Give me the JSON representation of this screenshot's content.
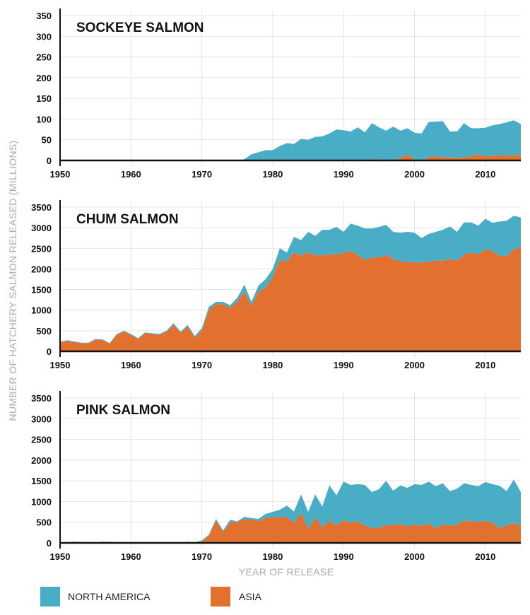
{
  "colors": {
    "north_america": "#4aadc6",
    "asia": "#e2702e",
    "grid": "#e4e4e4",
    "axis": "#111111"
  },
  "ylabel": "NUMBER OF HATCHERY SALMON RELEASED (MILLIONS)",
  "xlabel": "YEAR OF RELEASE",
  "legend": [
    {
      "name": "NORTH AMERICA",
      "color": "#4aadc6"
    },
    {
      "name": "ASIA",
      "color": "#e2702e"
    }
  ],
  "chart_data": [
    {
      "type": "area",
      "stacked": true,
      "title": "SOCKEYE SALMON",
      "x_start": 1950,
      "x_end": 2015,
      "xticks": [
        1950,
        1960,
        1970,
        1980,
        1990,
        2000,
        2010
      ],
      "yticks": [
        0,
        50,
        100,
        150,
        200,
        250,
        300,
        350
      ],
      "ylim": [
        0,
        350
      ],
      "grid": true,
      "series": [
        {
          "name": "ASIA",
          "values": [
            0,
            0,
            0,
            0,
            0,
            0,
            0,
            0,
            0,
            0,
            0,
            0,
            0,
            0,
            0,
            0,
            0,
            0,
            0,
            0,
            0,
            0,
            0,
            0,
            0,
            0,
            0,
            0,
            0,
            0,
            0,
            0,
            0,
            0,
            0,
            0,
            0,
            0,
            0,
            0,
            0,
            0,
            0,
            0,
            3,
            3,
            0,
            2,
            5,
            15,
            2,
            0,
            8,
            10,
            8,
            8,
            6,
            8,
            10,
            15,
            10,
            12,
            13,
            12,
            13,
            13
          ]
        },
        {
          "name": "NORTH AMERICA",
          "values": [
            0,
            0,
            0,
            0,
            0,
            0,
            0,
            0,
            0,
            0,
            0,
            0,
            0,
            0,
            0,
            0,
            0,
            0,
            0,
            0,
            0,
            0,
            0,
            0,
            0,
            0,
            3,
            15,
            20,
            25,
            25,
            35,
            42,
            40,
            52,
            50,
            57,
            58,
            65,
            75,
            73,
            70,
            80,
            68,
            87,
            77,
            72,
            80,
            67,
            63,
            65,
            65,
            85,
            84,
            87,
            62,
            64,
            82,
            68,
            63,
            69,
            73,
            75,
            80,
            84,
            75
          ]
        }
      ]
    },
    {
      "type": "area",
      "stacked": true,
      "title": "CHUM SALMON",
      "x_start": 1950,
      "x_end": 2015,
      "xticks": [
        1950,
        1960,
        1970,
        1980,
        1990,
        2000,
        2010
      ],
      "yticks": [
        0,
        500,
        1000,
        1500,
        2000,
        2500,
        3000,
        3500
      ],
      "ylim": [
        0,
        3500
      ],
      "grid": true,
      "series": [
        {
          "name": "ASIA",
          "values": [
            210,
            250,
            225,
            195,
            195,
            280,
            275,
            185,
            400,
            480,
            400,
            300,
            440,
            420,
            400,
            470,
            640,
            450,
            600,
            330,
            500,
            1000,
            1150,
            1140,
            1060,
            1200,
            1450,
            1100,
            1450,
            1550,
            1800,
            2220,
            2180,
            2400,
            2330,
            2400,
            2330,
            2340,
            2340,
            2370,
            2380,
            2440,
            2330,
            2220,
            2280,
            2280,
            2340,
            2240,
            2190,
            2170,
            2160,
            2160,
            2180,
            2200,
            2200,
            2240,
            2200,
            2350,
            2400,
            2350,
            2480,
            2420,
            2330,
            2300,
            2480,
            2520
          ]
        },
        {
          "name": "NORTH AMERICA",
          "values": [
            20,
            20,
            15,
            15,
            15,
            20,
            15,
            15,
            20,
            20,
            20,
            20,
            20,
            20,
            20,
            30,
            40,
            30,
            40,
            40,
            60,
            80,
            50,
            60,
            60,
            100,
            170,
            100,
            150,
            200,
            200,
            280,
            220,
            380,
            370,
            500,
            470,
            610,
            610,
            650,
            520,
            660,
            720,
            760,
            700,
            740,
            730,
            660,
            690,
            730,
            720,
            590,
            670,
            700,
            750,
            790,
            700,
            780,
            730,
            700,
            740,
            700,
            820,
            870,
            810,
            730
          ]
        }
      ]
    },
    {
      "type": "area",
      "stacked": true,
      "title": "PINK SALMON",
      "x_start": 1950,
      "x_end": 2015,
      "xticks": [
        1950,
        1960,
        1970,
        1980,
        1990,
        2000,
        2010
      ],
      "yticks": [
        0,
        500,
        1000,
        1500,
        2000,
        2500,
        3000,
        3500
      ],
      "ylim": [
        0,
        3500
      ],
      "grid": true,
      "series": [
        {
          "name": "ASIA",
          "values": [
            0,
            0,
            0,
            0,
            0,
            0,
            0,
            0,
            0,
            0,
            0,
            0,
            0,
            0,
            0,
            0,
            0,
            0,
            0,
            0,
            40,
            180,
            540,
            270,
            500,
            500,
            580,
            560,
            530,
            600,
            620,
            620,
            620,
            480,
            730,
            330,
            610,
            380,
            540,
            420,
            550,
            480,
            520,
            420,
            360,
            370,
            430,
            430,
            450,
            400,
            450,
            410,
            470,
            360,
            440,
            420,
            440,
            540,
            530,
            500,
            540,
            490,
            360,
            430,
            480,
            420
          ]
        },
        {
          "name": "NORTH AMERICA",
          "values": [
            0,
            10,
            30,
            20,
            25,
            0,
            30,
            25,
            10,
            20,
            15,
            0,
            0,
            5,
            20,
            0,
            0,
            0,
            30,
            20,
            20,
            20,
            40,
            30,
            60,
            20,
            50,
            40,
            50,
            100,
            130,
            180,
            280,
            280,
            440,
            420,
            560,
            500,
            850,
            730,
            930,
            920,
            900,
            980,
            870,
            930,
            1070,
            830,
            940,
            930,
            970,
            990,
            1010,
            1010,
            1000,
            830,
            870,
            900,
            870,
            870,
            930,
            930,
            1020,
            820,
            1050,
            810
          ]
        }
      ]
    }
  ]
}
